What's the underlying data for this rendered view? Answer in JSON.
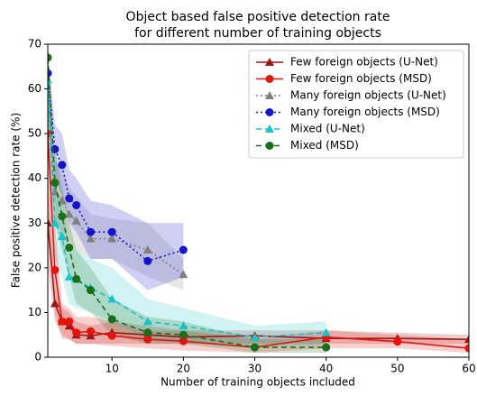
{
  "chart_data": {
    "type": "line",
    "title": "Object based false positive detection rate",
    "subtitle": "for different number of training objects",
    "x_label": "Number of training objects included",
    "y_label": "False positive detection rate (%)",
    "xlim": [
      1,
      60
    ],
    "ylim": [
      0,
      70
    ],
    "xticks": [
      10,
      20,
      30,
      40,
      50,
      60
    ],
    "yticks": [
      0,
      10,
      20,
      30,
      40,
      50,
      60,
      70
    ],
    "legend": "upper right",
    "series": [
      {
        "name": "Few foreign objects (U-Net)",
        "color": "#a01515",
        "marker": "triangle",
        "dash": "solid",
        "x": [
          1,
          2,
          3,
          4,
          5,
          7,
          10,
          15,
          20,
          30,
          40,
          50,
          60
        ],
        "values": [
          30,
          12,
          8,
          7,
          5,
          4.8,
          5.5,
          5,
          4.5,
          4.8,
          4.2,
          4.2,
          4
        ],
        "low": [
          20,
          8,
          5,
          4,
          3,
          3,
          3,
          3,
          3,
          3,
          3,
          3,
          3
        ],
        "high": [
          40,
          16,
          11,
          10,
          8,
          7,
          8,
          7,
          6,
          6,
          6,
          5.5,
          5
        ]
      },
      {
        "name": "Few foreign objects (MSD)",
        "color": "#e8120c",
        "marker": "circle",
        "dash": "solid",
        "x": [
          1,
          2,
          3,
          4,
          5,
          7,
          10,
          15,
          20,
          30,
          40,
          50,
          60
        ],
        "values": [
          50,
          19.5,
          8,
          8,
          5.5,
          5.8,
          4.8,
          4,
          3.6,
          2.2,
          4.5,
          3.5,
          2
        ],
        "low": [
          30,
          10,
          4,
          4,
          3,
          3,
          2.5,
          2,
          1.5,
          1,
          2,
          2,
          1
        ],
        "high": [
          60,
          30,
          12,
          11,
          9,
          9,
          8,
          6,
          6,
          4,
          6,
          5,
          4
        ]
      },
      {
        "name": "Many foreign objects (U-Net)",
        "color": "#808080",
        "marker": "triangle",
        "dash": "dotted",
        "x": [
          1,
          2,
          3,
          4,
          5,
          7,
          10,
          15,
          20
        ],
        "values": [
          55,
          37,
          35,
          32,
          30.5,
          26.5,
          26.5,
          24,
          18.5
        ],
        "low": [
          45,
          30,
          28,
          26,
          24,
          22,
          22,
          18,
          15
        ],
        "high": [
          62,
          44,
          42,
          38,
          36,
          32,
          31,
          30,
          22
        ]
      },
      {
        "name": "Many foreign objects (MSD)",
        "color": "#1414cc",
        "marker": "circle",
        "dash": "dotted",
        "x": [
          1,
          2,
          3,
          4,
          5,
          7,
          10,
          15,
          20
        ],
        "values": [
          63.5,
          46.5,
          43,
          35.5,
          34,
          28,
          28,
          21.5,
          24
        ],
        "low": [
          55,
          40,
          36,
          30,
          28,
          22,
          22,
          15,
          18
        ],
        "high": [
          68,
          52,
          50,
          42,
          40,
          35,
          34,
          30,
          30
        ]
      },
      {
        "name": "Mixed (U-Net)",
        "color": "#17c4c8",
        "marker": "triangle",
        "dash": "dashed",
        "x": [
          1,
          2,
          3,
          4,
          5,
          7,
          10,
          15,
          20,
          30,
          40
        ],
        "values": [
          62,
          30,
          27,
          18,
          17.5,
          15.5,
          13,
          8,
          7,
          4.5,
          5.5
        ],
        "low": [
          55,
          22,
          18,
          12,
          11,
          10,
          8,
          4,
          3,
          2,
          3
        ],
        "high": [
          68,
          38,
          35,
          25,
          24,
          22,
          20,
          13,
          11,
          7,
          8
        ]
      },
      {
        "name": "Mixed (MSD)",
        "color": "#1a6e1a",
        "marker": "circle",
        "dash": "dashed",
        "x": [
          1,
          2,
          3,
          4,
          5,
          7,
          10,
          15,
          20,
          30,
          40
        ],
        "values": [
          67,
          39,
          31.5,
          24.5,
          17.5,
          15,
          8.5,
          5.5,
          5,
          2.2,
          2.2
        ],
        "low": [
          60,
          30,
          24,
          18,
          12,
          10,
          5,
          3,
          3,
          1,
          1
        ],
        "high": [
          70,
          46,
          38,
          30,
          24,
          20,
          13,
          9,
          8,
          4,
          4
        ]
      }
    ]
  }
}
